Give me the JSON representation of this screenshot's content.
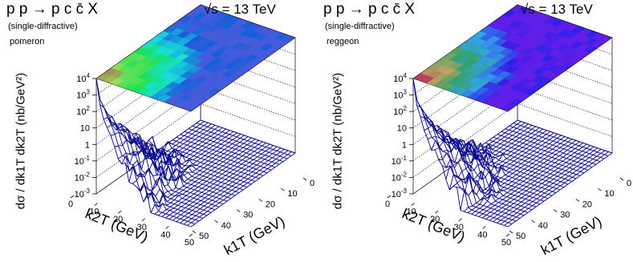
{
  "chart_data": [
    {
      "type": "surface3d",
      "title": "p p → p c c̄ X",
      "energy_label": "√s = 13 TeV",
      "subtitle": "(single-diffractive)",
      "exchange": "pomeron",
      "zlabel": "dσ / dk1T dk2T (nb/GeV²)",
      "xlabel": "k2T (GeV)",
      "ylabel": "k1T (GeV)",
      "x_ticks": [
        "0",
        "10",
        "20",
        "30",
        "40",
        "50"
      ],
      "y_ticks": [
        "0",
        "10",
        "20",
        "30",
        "40",
        "50"
      ],
      "z_ticks": [
        "10^-3",
        "10^-2",
        "10^-1",
        "1",
        "10",
        "10^2",
        "10^3",
        "10^4"
      ],
      "xlim": [
        0,
        50
      ],
      "ylim": [
        0,
        50
      ],
      "zlim": [
        0.001,
        10000
      ],
      "zscale": "log",
      "peak_at": [
        0,
        0
      ],
      "peak_value": 10000,
      "colormap": "rainbow",
      "top_color_background": "#2dc4b8",
      "surface_color": "#00008b"
    },
    {
      "type": "surface3d",
      "title": "p p → p c c̄ X",
      "energy_label": "√s = 13 TeV",
      "subtitle": "(single-diffractive)",
      "exchange": "reggeon",
      "zlabel": "dσ / dk1T dk2T (nb/GeV²)",
      "xlabel": "k2T (GeV)",
      "ylabel": "k1T (GeV)",
      "x_ticks": [
        "0",
        "10",
        "20",
        "30",
        "40",
        "50"
      ],
      "y_ticks": [
        "0",
        "10",
        "20",
        "30",
        "40",
        "50"
      ],
      "z_ticks": [
        "10^-3",
        "10^-2",
        "10^-1",
        "1",
        "10",
        "10^2",
        "10^3",
        "10^4"
      ],
      "xlim": [
        0,
        50
      ],
      "ylim": [
        0,
        50
      ],
      "zlim": [
        0.001,
        10000
      ],
      "zscale": "log",
      "peak_at": [
        0,
        0
      ],
      "peak_value": 10000,
      "colormap": "rainbow",
      "top_color_background": "#6a3cd6",
      "surface_color": "#00008b"
    }
  ]
}
